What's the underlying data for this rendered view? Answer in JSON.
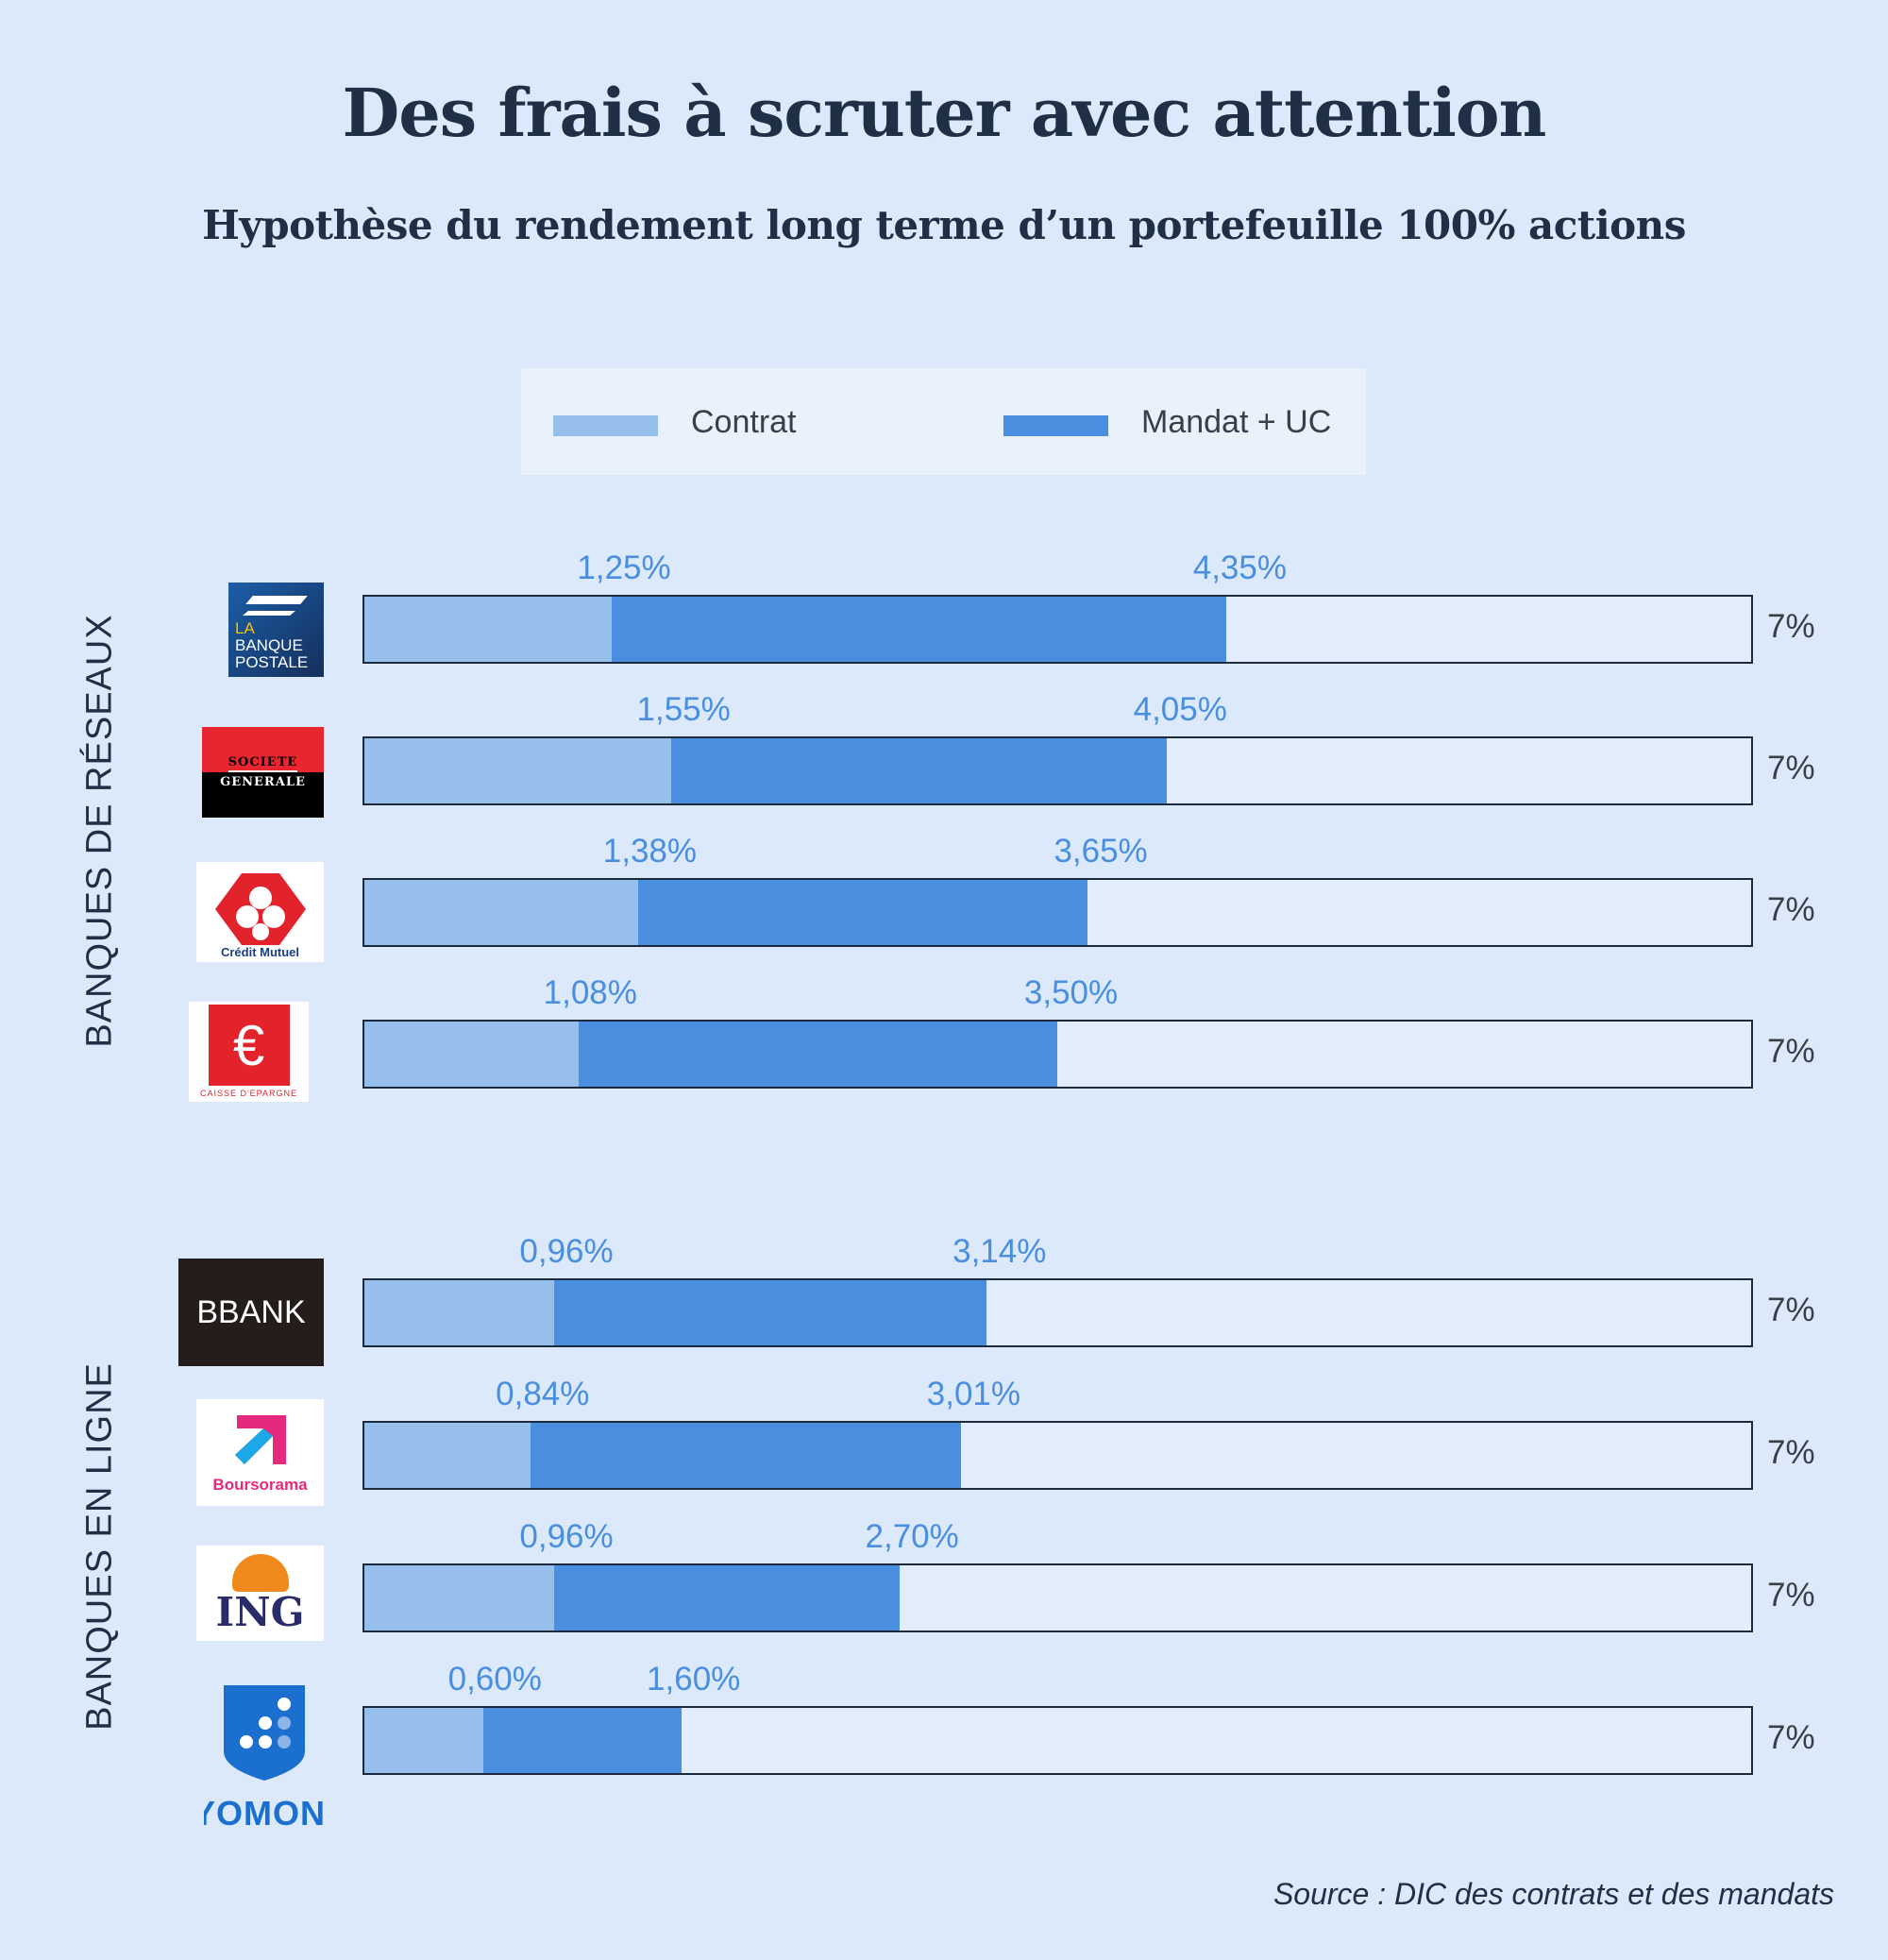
{
  "chart_data": {
    "type": "bar",
    "stacked": true,
    "title": "Des frais à scruter avec attention",
    "subtitle": "Hypothèse du rendement long terme d’un portefeuille 100% actions",
    "legend": {
      "placement": "top",
      "entries": [
        "Contrat",
        "Mandat + UC"
      ]
    },
    "colors": {
      "Contrat": "#97bfec",
      "Mandat + UC": "#4a8ee0",
      "remaining": "#e2edfb"
    },
    "xlim": [
      0,
      7
    ],
    "max_label": "7%",
    "groups": [
      {
        "label": "BANQUES DE RÉSEAUX",
        "banks": [
          "La Banque Postale",
          "Société Générale",
          "Crédit Mutuel",
          "Caisse d'Epargne"
        ]
      },
      {
        "label": "BANQUES EN LIGNE",
        "banks": [
          "BforBank",
          "Boursorama",
          "ING",
          "Yomoni"
        ]
      }
    ],
    "categories": [
      "La Banque Postale",
      "Société Générale",
      "Crédit Mutuel",
      "Caisse d'Epargne",
      "BforBank",
      "Boursorama",
      "ING",
      "Yomoni"
    ],
    "series": [
      {
        "name": "Contrat",
        "values": [
          1.25,
          1.55,
          1.38,
          1.08,
          0.96,
          0.84,
          0.96,
          0.6
        ],
        "labels": [
          "1,25%",
          "1,55%",
          "1,38%",
          "1,08%",
          "0,96%",
          "0,84%",
          "0,96%",
          "0,60%"
        ]
      },
      {
        "name": "Mandat + UC",
        "values": [
          4.35,
          4.05,
          3.65,
          3.5,
          3.14,
          3.01,
          2.7,
          1.6
        ],
        "labels": [
          "4,35%",
          "4,05%",
          "3,65%",
          "3,50%",
          "3,14%",
          "3,01%",
          "2,70%",
          "1,60%"
        ]
      }
    ],
    "source": "Source : DIC des contrats et des mandats"
  },
  "logos": {
    "lbp": [
      "LA",
      "BANQUE",
      "POSTALE"
    ],
    "sg": [
      "SOCIETE",
      "GENERALE"
    ],
    "cm": "Crédit Mutuel",
    "ce": "CAISSE D'EPARGNE",
    "bfb": "BFORBANK",
    "bfb_text": "BANK",
    "bfb_mark": "B",
    "bourso": "Boursorama",
    "ing": "ING",
    "yomoni": "YOMONI"
  }
}
